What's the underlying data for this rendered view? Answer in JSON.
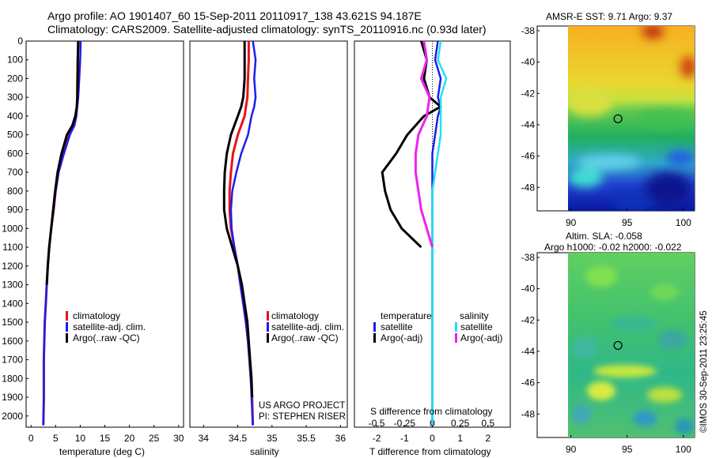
{
  "header": {
    "line1": "Argo profile: AO 1901407_60 15-Sep-2011 20110917_138 43.621S 94.187E",
    "line2": "Climatology: CARS2009. Satellite-adjusted climatology: synTS_20110916.nc (0.93d later)"
  },
  "colors": {
    "climatology": "#e8141a",
    "satellite": "#1c1cf0",
    "argo": "#000000",
    "satellite_sal": "#22e0ee",
    "argo_sal": "#ee22ee"
  },
  "chart_data": [
    {
      "id": "temperature",
      "type": "line",
      "xlabel": "temperature (deg C)",
      "xlim": [
        -1,
        31
      ],
      "xticks": [
        0,
        5,
        10,
        15,
        20,
        25,
        30
      ],
      "ylim": [
        2060,
        0
      ],
      "yticks": [
        0,
        100,
        200,
        300,
        400,
        500,
        600,
        700,
        800,
        900,
        1000,
        1100,
        1200,
        1300,
        1400,
        1500,
        1600,
        1700,
        1800,
        1900,
        2000
      ],
      "legend": [
        "climatology",
        "satellite-adj. clim.",
        "Argo(..raw -QC)"
      ],
      "series": [
        {
          "name": "climatology",
          "color": "#e8141a",
          "width": 3,
          "x": [
            9.6,
            9.5,
            9.4,
            9.4,
            9.3,
            9.2,
            8.8,
            7.8,
            6.6,
            5.6,
            5.0,
            4.6,
            4.1,
            3.7,
            3.4,
            3.2,
            3.0,
            2.8,
            2.7,
            2.6,
            2.6,
            2.5
          ],
          "y": [
            0,
            100,
            200,
            300,
            350,
            400,
            450,
            500,
            600,
            700,
            800,
            900,
            1000,
            1100,
            1200,
            1300,
            1400,
            1500,
            1600,
            1700,
            1900,
            2050
          ]
        },
        {
          "name": "satellite-adj. clim.",
          "color": "#1c1cf0",
          "width": 2.5,
          "x": [
            10.1,
            10.0,
            9.8,
            9.6,
            9.4,
            9.2,
            8.8,
            7.9,
            6.7,
            5.6,
            5.0,
            4.6,
            4.1,
            3.7,
            3.4,
            3.2,
            3.0,
            2.8,
            2.7,
            2.6,
            2.6,
            2.5
          ],
          "y": [
            0,
            100,
            200,
            300,
            350,
            400,
            450,
            500,
            600,
            700,
            800,
            900,
            1000,
            1100,
            1200,
            1300,
            1400,
            1500,
            1600,
            1700,
            1900,
            2050
          ]
        },
        {
          "name": "Argo(..raw -QC)",
          "color": "#000000",
          "width": 3,
          "x": [
            9.6,
            9.5,
            9.5,
            9.4,
            9.3,
            9.0,
            8.4,
            7.3,
            6.2,
            5.4,
            4.9,
            4.5,
            4.1,
            3.7,
            3.4,
            3.2
          ],
          "y": [
            0,
            100,
            200,
            300,
            350,
            400,
            450,
            500,
            600,
            700,
            800,
            900,
            1000,
            1100,
            1200,
            1300
          ]
        }
      ]
    },
    {
      "id": "salinity",
      "type": "line",
      "xlabel": "salinity",
      "xlim": [
        33.8,
        36.1
      ],
      "xticks": [
        34,
        34.5,
        35,
        35.5,
        36
      ],
      "ylim": [
        2060,
        0
      ],
      "legend": [
        "climatology",
        "satellite-adj. clim.",
        "Argo(..raw -QC)"
      ],
      "annotation": [
        "US ARGO PROJECT",
        "PI: STEPHEN RISER"
      ],
      "series": [
        {
          "name": "climatology",
          "color": "#e8141a",
          "width": 3,
          "x": [
            34.66,
            34.66,
            34.65,
            34.64,
            34.62,
            34.6,
            34.5,
            34.43,
            34.4,
            34.38,
            34.38,
            34.4,
            34.45,
            34.5,
            34.54,
            34.58,
            34.62,
            34.65,
            34.67,
            34.69,
            34.71,
            34.72
          ],
          "y": [
            0,
            100,
            200,
            300,
            350,
            400,
            500,
            600,
            700,
            800,
            900,
            1000,
            1100,
            1200,
            1300,
            1400,
            1500,
            1600,
            1700,
            1800,
            1900,
            2050
          ]
        },
        {
          "name": "satellite-adj. clim.",
          "color": "#1c1cf0",
          "width": 2.5,
          "x": [
            34.72,
            34.76,
            34.74,
            34.76,
            34.74,
            34.7,
            34.65,
            34.55,
            34.48,
            34.42,
            34.4,
            34.41,
            34.45,
            34.5,
            34.54,
            34.58,
            34.62,
            34.65,
            34.67,
            34.69,
            34.7,
            34.72
          ],
          "y": [
            0,
            100,
            200,
            300,
            350,
            400,
            500,
            600,
            700,
            800,
            900,
            1000,
            1100,
            1200,
            1300,
            1400,
            1500,
            1600,
            1700,
            1800,
            1900,
            2050
          ]
        },
        {
          "name": "Argo(..raw -QC)",
          "color": "#000000",
          "width": 3,
          "x": [
            34.6,
            34.6,
            34.6,
            34.58,
            34.55,
            34.5,
            34.4,
            34.34,
            34.31,
            34.3,
            34.3,
            34.34,
            34.42,
            34.5,
            34.56,
            34.6,
            34.64,
            34.66,
            34.68,
            34.7,
            34.71
          ],
          "y": [
            0,
            100,
            200,
            300,
            350,
            400,
            500,
            600,
            700,
            800,
            900,
            1000,
            1100,
            1200,
            1300,
            1400,
            1500,
            1600,
            1700,
            1800,
            1900
          ]
        }
      ]
    },
    {
      "id": "difference",
      "type": "line",
      "xlabel": "T difference from climatology",
      "xlabel_top": "S difference from climatology",
      "xlim": [
        -2.8,
        2.8
      ],
      "xticks": [
        -2,
        -1,
        0,
        1,
        2
      ],
      "xticks_top": [
        -0.5,
        -0.25,
        0,
        0.25,
        0.5
      ],
      "ylim": [
        2060,
        0
      ],
      "legend_headers": [
        "temperature",
        "salinity"
      ],
      "legend": [
        "satellite",
        "Argo(-adj)",
        "satellite",
        "Argo(-adj)"
      ],
      "series": [
        {
          "name": "satellite",
          "group": "temperature",
          "color": "#1c1cf0",
          "width": 2.5,
          "x": [
            0.2,
            0.1,
            0.3,
            0.2,
            0.3,
            0.2,
            0.1,
            0.0,
            0.0,
            0.0,
            0.0,
            0.0,
            0.0,
            0.0,
            0.0,
            0.0
          ],
          "y": [
            0,
            100,
            200,
            300,
            350,
            400,
            500,
            600,
            700,
            800,
            900,
            1000,
            1100,
            1200,
            1500,
            2050
          ]
        },
        {
          "name": "Argo(-adj)",
          "group": "temperature",
          "color": "#000000",
          "width": 3,
          "x": [
            -0.4,
            -0.2,
            -0.3,
            -0.1,
            0.3,
            -0.3,
            -0.9,
            -1.3,
            -1.8,
            -1.7,
            -1.5,
            -1.1,
            -0.4
          ],
          "y": [
            0,
            100,
            200,
            300,
            350,
            400,
            500,
            600,
            700,
            800,
            900,
            1000,
            1100
          ]
        },
        {
          "name": "satellite",
          "group": "salinity",
          "color": "#22e0ee",
          "width": 2.5,
          "x": [
            0.3,
            0.2,
            0.5,
            0.3,
            0.3,
            0.3,
            0.2,
            0.1,
            0.0,
            0.0,
            0.0,
            0.0,
            0.0
          ],
          "y": [
            0,
            100,
            200,
            300,
            400,
            500,
            600,
            700,
            800,
            900,
            1000,
            1200,
            2050
          ]
        },
        {
          "name": "Argo(-adj)",
          "group": "salinity",
          "color": "#ee22ee",
          "width": 3,
          "x": [
            -0.3,
            -0.2,
            -0.4,
            -0.1,
            -0.2,
            -0.5,
            -0.6,
            -0.6,
            -0.5,
            -0.4,
            -0.2,
            0.0
          ],
          "y": [
            0,
            100,
            200,
            300,
            400,
            500,
            600,
            700,
            800,
            900,
            1000,
            1100
          ]
        }
      ]
    },
    {
      "id": "sst_map",
      "type": "heatmap",
      "title": "AMSR-E SST: 9.71 Argo: 9.37",
      "xlim": [
        87,
        101
      ],
      "ylim": [
        -49.5,
        -37.7
      ],
      "xticks": [
        90,
        95,
        100
      ],
      "yticks": [
        -38,
        -40,
        -42,
        -44,
        -46,
        -48
      ],
      "marker": {
        "lon": 94.187,
        "lat": -43.621
      }
    },
    {
      "id": "sla_map",
      "type": "heatmap",
      "title_line1": "Altim. SLA: -0.058",
      "title_line2": "Argo h1000: -0.02 h2000: -0.022",
      "xlim": [
        87,
        101
      ],
      "ylim": [
        -49.5,
        -37.7
      ],
      "xticks": [
        90,
        95,
        100
      ],
      "yticks": [
        -38,
        -40,
        -42,
        -44,
        -46,
        -48
      ],
      "marker": {
        "lon": 94.187,
        "lat": -43.621
      }
    }
  ],
  "stamp": "©IMOS 30-Sep-2011 23:25:45"
}
